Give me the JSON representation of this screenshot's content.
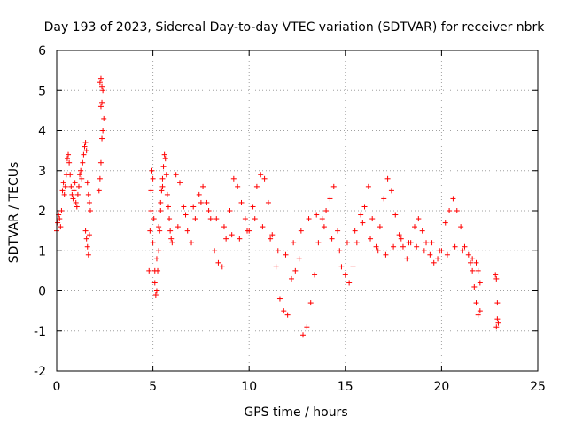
{
  "chart_data": {
    "type": "scatter",
    "title": "Day 193 of 2023, Sidereal Day-to-day VTEC variation (SDTVAR) for receiver nbrk",
    "xlabel": "GPS time / hours",
    "ylabel": "SDTVAR / TECUs",
    "xlim": [
      0,
      25
    ],
    "ylim": [
      -2,
      6
    ],
    "xticks": [
      0,
      5,
      10,
      15,
      20,
      25
    ],
    "yticks": [
      -2,
      -1,
      0,
      1,
      2,
      3,
      4,
      5,
      6
    ],
    "grid": true,
    "marker": "+",
    "color": "#ff0000",
    "series": [
      {
        "name": "SDTVAR",
        "x": [
          0.0,
          0.05,
          0.1,
          0.15,
          0.2,
          0.25,
          0.3,
          0.35,
          0.4,
          0.45,
          0.5,
          0.55,
          0.6,
          0.65,
          0.7,
          0.75,
          0.8,
          0.85,
          0.9,
          0.95,
          1.0,
          1.05,
          1.1,
          1.15,
          1.2,
          1.25,
          1.3,
          1.35,
          1.4,
          1.45,
          1.5,
          1.55,
          1.6,
          1.65,
          1.7,
          1.75,
          1.5,
          1.55,
          1.6,
          1.65,
          1.7,
          2.2,
          2.25,
          2.3,
          2.35,
          2.4,
          2.45,
          2.3,
          2.35,
          2.4,
          2.25,
          2.3,
          2.35,
          4.8,
          4.85,
          4.9,
          4.95,
          5.0,
          5.05,
          5.1,
          5.15,
          5.2,
          5.25,
          5.3,
          5.35,
          5.4,
          5.45,
          5.5,
          5.55,
          5.6,
          5.65,
          5.7,
          5.75,
          5.8,
          5.85,
          5.9,
          5.95,
          6.0,
          4.9,
          5.0,
          5.1,
          5.2,
          5.3,
          5.4,
          5.5,
          6.2,
          6.4,
          6.6,
          6.8,
          7.0,
          7.2,
          7.4,
          7.6,
          7.8,
          8.0,
          8.2,
          8.4,
          8.6,
          8.8,
          9.0,
          9.2,
          9.4,
          9.6,
          9.8,
          10.0,
          10.2,
          10.4,
          10.6,
          10.8,
          11.0,
          11.2,
          11.4,
          11.6,
          11.8,
          12.0,
          12.2,
          12.4,
          12.6,
          12.8,
          13.0,
          13.2,
          13.4,
          13.6,
          13.8,
          14.0,
          14.2,
          14.4,
          14.6,
          14.8,
          15.0,
          15.2,
          15.4,
          15.6,
          15.8,
          16.0,
          16.2,
          16.4,
          16.6,
          16.8,
          17.0,
          17.2,
          17.4,
          17.6,
          17.8,
          18.0,
          18.2,
          18.4,
          18.6,
          18.8,
          19.0,
          19.2,
          19.4,
          19.6,
          19.8,
          20.0,
          20.2,
          20.4,
          20.6,
          20.8,
          21.0,
          21.2,
          21.4,
          21.6,
          21.8,
          22.0,
          6.3,
          6.7,
          7.1,
          7.5,
          7.9,
          8.3,
          8.7,
          9.1,
          9.5,
          9.9,
          10.3,
          10.7,
          11.1,
          11.5,
          11.9,
          12.3,
          12.7,
          13.1,
          13.5,
          13.9,
          14.3,
          14.7,
          15.1,
          15.5,
          15.9,
          16.3,
          16.7,
          17.1,
          17.5,
          17.9,
          18.3,
          18.7,
          19.1,
          19.5,
          19.9,
          20.3,
          20.7,
          21.1,
          21.5,
          21.9,
          21.6,
          21.7,
          21.8,
          21.9,
          22.0,
          22.8,
          22.85,
          22.9,
          22.95,
          22.85,
          22.9
        ],
        "y": [
          1.5,
          1.7,
          1.9,
          1.8,
          1.6,
          2.0,
          2.5,
          2.7,
          2.4,
          2.6,
          2.9,
          3.3,
          3.4,
          3.2,
          2.9,
          2.6,
          2.4,
          2.3,
          2.5,
          2.7,
          2.2,
          2.1,
          2.4,
          2.6,
          2.9,
          3.0,
          2.8,
          3.2,
          3.4,
          3.6,
          3.7,
          3.5,
          2.7,
          2.4,
          2.2,
          2.0,
          1.5,
          1.3,
          1.1,
          0.9,
          1.4,
          2.5,
          2.8,
          3.2,
          3.8,
          4.0,
          4.3,
          4.6,
          4.7,
          5.0,
          5.2,
          5.3,
          5.1,
          0.5,
          1.5,
          2.5,
          3.0,
          2.8,
          1.8,
          0.2,
          -0.1,
          0.0,
          0.5,
          1.0,
          1.5,
          2.0,
          2.5,
          2.8,
          3.1,
          3.4,
          3.3,
          2.9,
          2.4,
          2.1,
          1.8,
          1.5,
          1.3,
          1.2,
          2.0,
          1.2,
          0.5,
          0.8,
          1.6,
          2.2,
          2.6,
          2.9,
          2.7,
          2.1,
          1.5,
          1.2,
          1.8,
          2.4,
          2.6,
          2.2,
          1.8,
          1.0,
          0.7,
          0.6,
          1.3,
          2.0,
          2.8,
          2.6,
          2.2,
          1.8,
          1.5,
          2.1,
          2.6,
          2.9,
          2.8,
          2.2,
          1.4,
          0.6,
          -0.2,
          -0.5,
          -0.6,
          0.3,
          0.5,
          0.8,
          -1.1,
          -0.9,
          -0.3,
          0.4,
          1.2,
          1.8,
          2.0,
          2.3,
          2.6,
          1.5,
          0.6,
          0.4,
          0.2,
          0.6,
          1.2,
          1.9,
          2.1,
          2.6,
          1.8,
          1.1,
          1.6,
          2.3,
          2.8,
          2.5,
          1.9,
          1.4,
          1.1,
          0.8,
          1.2,
          1.6,
          1.8,
          1.5,
          1.2,
          0.9,
          0.7,
          0.8,
          1.0,
          1.7,
          2.0,
          2.3,
          2.0,
          1.6,
          1.1,
          0.9,
          0.8,
          0.7,
          0.2,
          1.6,
          1.9,
          2.1,
          2.2,
          2.0,
          1.8,
          1.6,
          1.4,
          1.3,
          1.5,
          1.8,
          1.6,
          1.3,
          1.0,
          0.9,
          1.2,
          1.5,
          1.8,
          1.9,
          1.6,
          1.3,
          1.0,
          1.2,
          1.5,
          1.7,
          1.3,
          1.0,
          0.9,
          1.1,
          1.3,
          1.2,
          1.1,
          1.0,
          1.2,
          1.0,
          0.9,
          1.1,
          1.0,
          0.7,
          0.5,
          0.5,
          0.1,
          -0.3,
          -0.6,
          -0.5,
          0.4,
          0.3,
          -0.3,
          -0.8,
          -0.9,
          -0.7
        ]
      }
    ]
  }
}
